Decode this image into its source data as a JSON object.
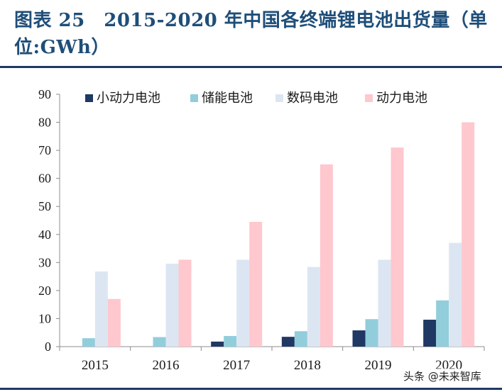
{
  "figure": {
    "title": "图表 25　2015-2020 年中国各终端锂电池出货量（单位:GWh）",
    "watermark": "头条 @未来智库"
  },
  "colors": {
    "title": "#1f4e79",
    "rule": "#1f3864",
    "series": [
      "#1f3864",
      "#92cddc",
      "#dce6f2",
      "#ffc7ce"
    ]
  },
  "chart_data": {
    "type": "bar",
    "title": "",
    "xlabel": "",
    "ylabel": "",
    "categories": [
      "2015",
      "2016",
      "2017",
      "2018",
      "2019",
      "2020"
    ],
    "ylim": [
      0,
      90
    ],
    "yticks": [
      0,
      10,
      20,
      30,
      40,
      50,
      60,
      70,
      80,
      90
    ],
    "grid": false,
    "legend_position": "top",
    "series": [
      {
        "name": "小动力电池",
        "values": [
          0,
          0,
          1.8,
          3.5,
          5.8,
          9.6
        ]
      },
      {
        "name": "储能电池",
        "values": [
          3.0,
          3.4,
          3.8,
          5.5,
          9.8,
          16.5
        ]
      },
      {
        "name": "数码电池",
        "values": [
          26.8,
          29.6,
          31.0,
          28.4,
          31.0,
          37.0
        ]
      },
      {
        "name": "动力电池",
        "values": [
          17.0,
          31.0,
          44.5,
          65.0,
          71.0,
          80.0
        ]
      }
    ]
  }
}
